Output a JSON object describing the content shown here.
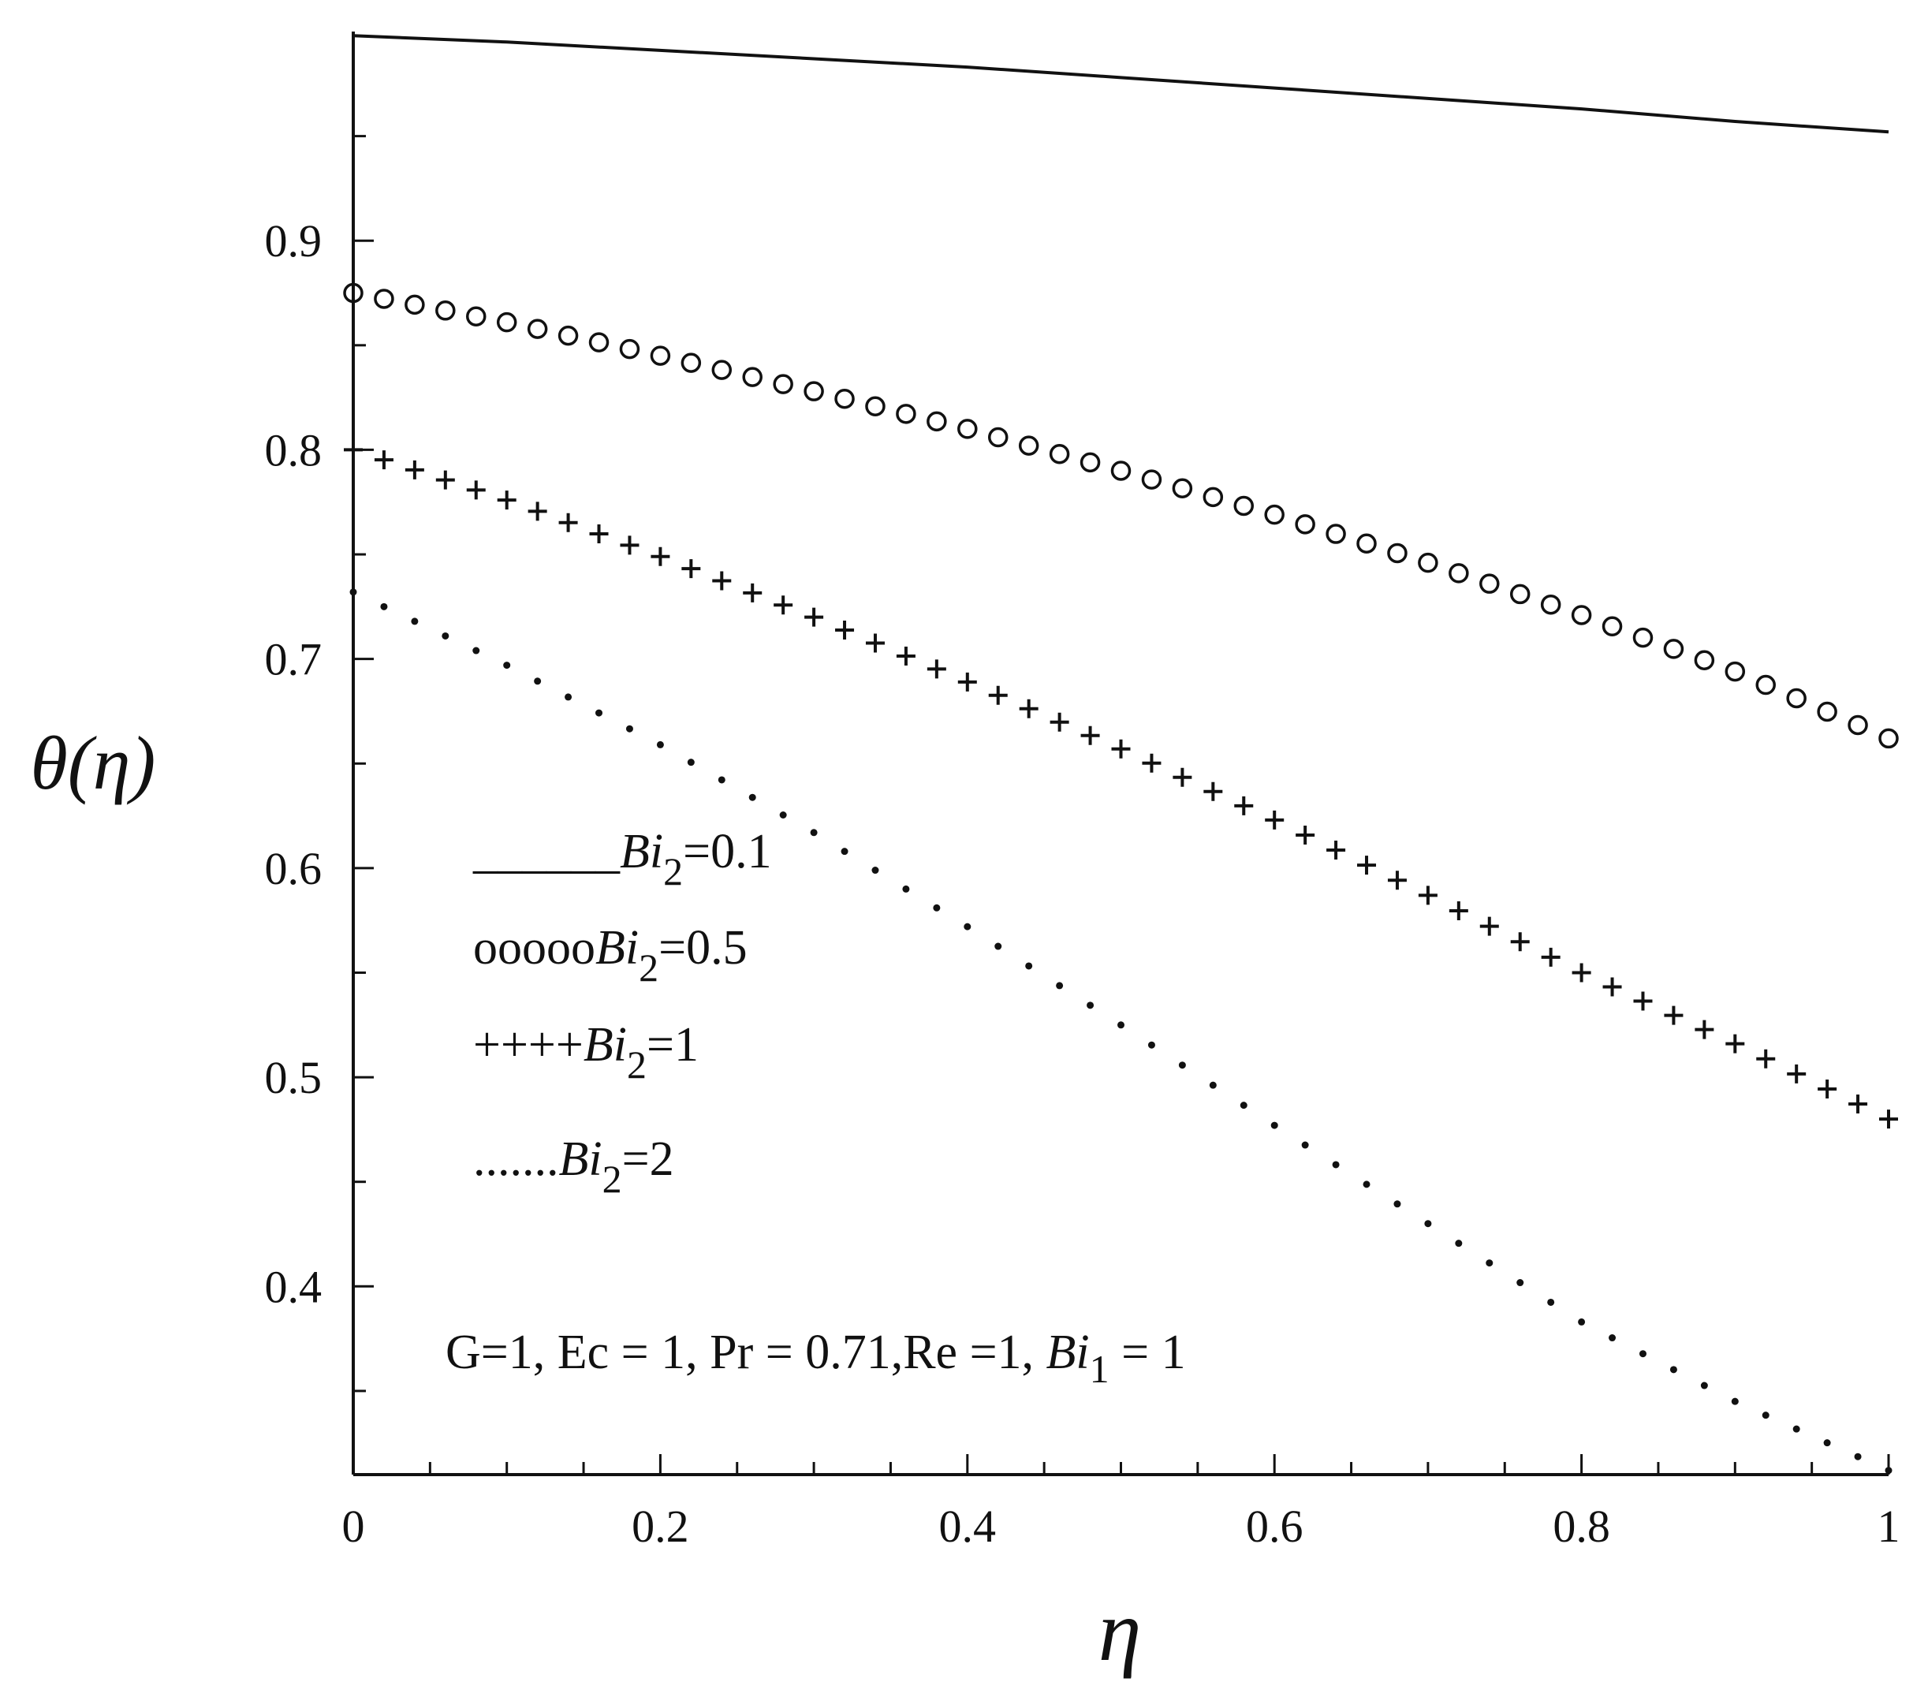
{
  "chart_data": {
    "type": "line",
    "title": "",
    "xlabel": "η",
    "ylabel": "θ(η)",
    "xlim": [
      0,
      1
    ],
    "ylim": [
      0.31,
      1.0
    ],
    "x_ticks": [
      "0",
      "0.2",
      "0.4",
      "0.6",
      "0.8",
      "1"
    ],
    "y_ticks": [
      "0.4",
      "0.5",
      "0.6",
      "0.7",
      "0.8",
      "0.9"
    ],
    "grid": false,
    "legend_position": "middle-left",
    "series": [
      {
        "name": "Bi2=0.1",
        "marker": "line",
        "x": [
          0,
          0.1,
          0.2,
          0.3,
          0.4,
          0.5,
          0.6,
          0.7,
          0.8,
          0.9,
          1.0
        ],
        "y": [
          0.998,
          0.995,
          0.991,
          0.987,
          0.983,
          0.978,
          0.973,
          0.968,
          0.963,
          0.957,
          0.952
        ]
      },
      {
        "name": "Bi2=0.5",
        "marker": "circle",
        "x": [
          0,
          0.1,
          0.2,
          0.3,
          0.4,
          0.5,
          0.6,
          0.7,
          0.8,
          0.9,
          1.0
        ],
        "y": [
          0.875,
          0.861,
          0.845,
          0.828,
          0.81,
          0.79,
          0.769,
          0.746,
          0.721,
          0.694,
          0.662
        ]
      },
      {
        "name": "Bi2=1",
        "marker": "plus",
        "x": [
          0,
          0.1,
          0.2,
          0.3,
          0.4,
          0.5,
          0.6,
          0.7,
          0.8,
          0.9,
          1.0
        ],
        "y": [
          0.8,
          0.776,
          0.749,
          0.72,
          0.689,
          0.657,
          0.623,
          0.587,
          0.55,
          0.516,
          0.48
        ]
      },
      {
        "name": "Bi2=2",
        "marker": "dot",
        "x": [
          0,
          0.1,
          0.2,
          0.3,
          0.4,
          0.5,
          0.6,
          0.7,
          0.8,
          0.9,
          1.0
        ],
        "y": [
          0.732,
          0.697,
          0.659,
          0.617,
          0.572,
          0.525,
          0.477,
          0.43,
          0.383,
          0.345,
          0.312
        ]
      }
    ],
    "legend": [
      {
        "symbol": "______",
        "label_main": "Bi",
        "label_sub": "2",
        "label_val": "=0.1"
      },
      {
        "symbol": "ooooo",
        "label_main": "Bi",
        "label_sub": "2",
        "label_val": "=0.5"
      },
      {
        "symbol": "++++",
        "label_main": "Bi",
        "label_sub": "2",
        "label_val": "=1"
      },
      {
        "symbol": ".......",
        "label_main": "Bi",
        "label_sub": "2",
        "label_val": "=2"
      }
    ],
    "annotation": {
      "prefix": "G=1, Ec = 1, Pr = 0.71,Re =1, ",
      "bi_main": "Bi",
      "bi_sub": "1",
      "suffix": " = 1"
    }
  }
}
